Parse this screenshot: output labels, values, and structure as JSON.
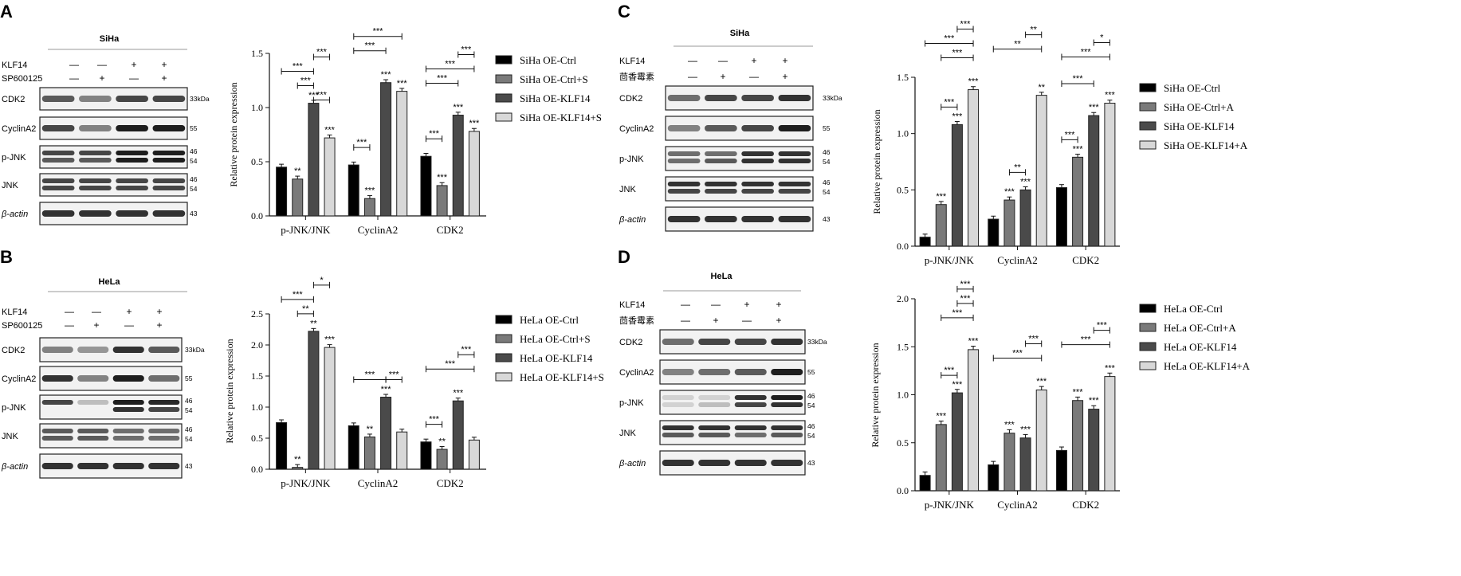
{
  "panels": [
    {
      "letter": "A",
      "cell": "SiHa",
      "treat_label": "SP600125",
      "rows": [
        "CDK2",
        "CyclinA2",
        "p-JNK",
        "JNK",
        "β-actin"
      ],
      "kda": [
        "33kDa",
        "55",
        "46\n54",
        "46\n54",
        "43"
      ],
      "klf": [
        "—",
        "—",
        "+",
        "+"
      ],
      "treat": [
        "—",
        "+",
        "—",
        "+"
      ]
    },
    {
      "letter": "B",
      "cell": "HeLa",
      "treat_label": "SP600125",
      "rows": [
        "CDK2",
        "CyclinA2",
        "p-JNK",
        "JNK",
        "β-actin"
      ],
      "kda": [
        "33kDa",
        "55",
        "46\n54",
        "46\n54",
        "43"
      ],
      "klf": [
        "—",
        "—",
        "+",
        "+"
      ],
      "treat": [
        "—",
        "+",
        "—",
        "+"
      ]
    },
    {
      "letter": "C",
      "cell": "SiHa",
      "treat_label": "茴香霉素",
      "rows": [
        "CDK2",
        "CyclinA2",
        "p-JNK",
        "JNK",
        "β-actin"
      ],
      "kda": [
        "33kDa",
        "55",
        "46\n54",
        "46\n54",
        "43"
      ],
      "klf": [
        "—",
        "—",
        "+",
        "+"
      ],
      "treat": [
        "—",
        "+",
        "—",
        "+"
      ]
    },
    {
      "letter": "D",
      "cell": "HeLa",
      "treat_label": "茴香霉素",
      "rows": [
        "CDK2",
        "CyclinA2",
        "p-JNK",
        "JNK",
        "β-actin"
      ],
      "kda": [
        "33kDa",
        "55",
        "46\n54",
        "46\n54",
        "43"
      ],
      "klf": [
        "—",
        "—",
        "+",
        "+"
      ],
      "treat": [
        "—",
        "+",
        "—",
        "+"
      ]
    }
  ],
  "klf_label": "KLF14",
  "colors": {
    "s1": "#000000",
    "s2": "#7a7a7a",
    "s3": "#4a4a4a",
    "s4": "#d8d8d8",
    "edge": "#222222"
  },
  "chart_data": [
    {
      "type": "bar",
      "panel": "A",
      "categories": [
        "p-JNK/JNK",
        "CyclinA2",
        "CDK2"
      ],
      "ylabel": "Relative protein expression",
      "ylim": [
        0,
        1.5
      ],
      "yticks": [
        0.0,
        0.5,
        1.0,
        1.5
      ],
      "series": [
        {
          "name": "SiHa OE-Ctrl",
          "values": [
            0.45,
            0.47,
            0.55
          ]
        },
        {
          "name": "SiHa OE-Ctrl+S",
          "values": [
            0.34,
            0.16,
            0.28
          ]
        },
        {
          "name": "SiHa OE-KLF14",
          "values": [
            1.04,
            1.23,
            0.93
          ]
        },
        {
          "name": "SiHa OE-KLF14+S",
          "values": [
            0.72,
            1.15,
            0.78
          ]
        }
      ],
      "bar_stars": [
        [
          "",
          "**",
          "***",
          "***"
        ],
        [
          "",
          "***",
          "***",
          "***"
        ],
        [
          "",
          "***",
          "***",
          "***"
        ]
      ],
      "brackets": [
        {
          "cat": 0,
          "from": 2,
          "to": 3,
          "level": 0,
          "label": "***"
        },
        {
          "cat": 0,
          "from": 1,
          "to": 2,
          "level": 1,
          "label": "***"
        },
        {
          "cat": 0,
          "from": 0,
          "to": 2,
          "level": 2,
          "label": "***"
        },
        {
          "cat": 0,
          "from": 2,
          "to": 3,
          "level": 3,
          "label": "***"
        },
        {
          "cat": 1,
          "from": 0,
          "to": 1,
          "level": 1,
          "label": "***"
        },
        {
          "cat": 1,
          "from": 0,
          "to": 2,
          "level": 2,
          "label": "***"
        },
        {
          "cat": 1,
          "from": 0,
          "to": 3,
          "level": 3,
          "label": "***"
        },
        {
          "cat": 2,
          "from": 0,
          "to": 1,
          "level": 1,
          "label": "***"
        },
        {
          "cat": 2,
          "from": 0,
          "to": 2,
          "level": 2,
          "label": "***"
        },
        {
          "cat": 2,
          "from": 0,
          "to": 3,
          "level": 3,
          "label": "***"
        },
        {
          "cat": 2,
          "from": 2,
          "to": 3,
          "level": 4,
          "label": "***"
        }
      ]
    },
    {
      "type": "bar",
      "panel": "B",
      "categories": [
        "p-JNK/JNK",
        "CyclinA2",
        "CDK2"
      ],
      "ylabel": "Relative protein expression",
      "ylim": [
        0,
        2.5
      ],
      "yticks": [
        0.0,
        0.5,
        1.0,
        1.5,
        2.0,
        2.5
      ],
      "series": [
        {
          "name": "HeLa OE-Ctrl",
          "values": [
            0.75,
            0.7,
            0.44
          ]
        },
        {
          "name": "HeLa OE-Ctrl+S",
          "values": [
            0.03,
            0.52,
            0.32
          ]
        },
        {
          "name": "HeLa OE-KLF14",
          "values": [
            2.22,
            1.16,
            1.1
          ]
        },
        {
          "name": "HeLa OE-KLF14+S",
          "values": [
            1.96,
            0.6,
            0.47
          ]
        }
      ],
      "bar_stars": [
        [
          "",
          "**",
          "**",
          "***"
        ],
        [
          "",
          "**",
          "***",
          ""
        ],
        [
          "",
          "**",
          "***",
          ""
        ]
      ],
      "brackets": [
        {
          "cat": 0,
          "from": 1,
          "to": 2,
          "level": 1,
          "label": "**"
        },
        {
          "cat": 0,
          "from": 0,
          "to": 2,
          "level": 2,
          "label": "***"
        },
        {
          "cat": 0,
          "from": 2,
          "to": 3,
          "level": 3,
          "label": "*"
        },
        {
          "cat": 1,
          "from": 0,
          "to": 2,
          "level": 1,
          "label": "***"
        },
        {
          "cat": 1,
          "from": 2,
          "to": 3,
          "level": 1,
          "label": "***"
        },
        {
          "cat": 2,
          "from": 0,
          "to": 1,
          "level": 1,
          "label": "***"
        },
        {
          "cat": 2,
          "from": 0,
          "to": 3,
          "level": 2,
          "label": "***"
        },
        {
          "cat": 2,
          "from": 2,
          "to": 3,
          "level": 3,
          "label": "***"
        }
      ]
    },
    {
      "type": "bar",
      "panel": "C",
      "categories": [
        "p-JNK/JNK",
        "CyclinA2",
        "CDK2"
      ],
      "ylabel": "Relative protein expression",
      "ylim": [
        0,
        1.5
      ],
      "yticks": [
        0.0,
        0.5,
        1.0,
        1.5
      ],
      "series": [
        {
          "name": "SiHa OE-Ctrl",
          "values": [
            0.08,
            0.24,
            0.52
          ]
        },
        {
          "name": "SiHa OE-Ctrl+A",
          "values": [
            0.37,
            0.41,
            0.79
          ]
        },
        {
          "name": "SiHa OE-KLF14",
          "values": [
            1.08,
            0.5,
            1.16
          ]
        },
        {
          "name": "SiHa OE-KLF14+A",
          "values": [
            1.39,
            1.34,
            1.27
          ]
        }
      ],
      "bar_stars": [
        [
          "",
          "***",
          "***",
          "***"
        ],
        [
          "",
          "***",
          "***",
          "**"
        ],
        [
          "",
          "***",
          "***",
          "***"
        ]
      ],
      "brackets": [
        {
          "cat": 0,
          "from": 1,
          "to": 2,
          "level": 1,
          "label": "***"
        },
        {
          "cat": 0,
          "from": 1,
          "to": 3,
          "level": 2,
          "label": "***"
        },
        {
          "cat": 0,
          "from": 0,
          "to": 3,
          "level": 3,
          "label": "***"
        },
        {
          "cat": 0,
          "from": 2,
          "to": 3,
          "level": 4,
          "label": "***"
        },
        {
          "cat": 1,
          "from": 1,
          "to": 2,
          "level": 1,
          "label": "**"
        },
        {
          "cat": 1,
          "from": 0,
          "to": 3,
          "level": 3,
          "label": "**"
        },
        {
          "cat": 1,
          "from": 2,
          "to": 3,
          "level": 4,
          "label": "**"
        },
        {
          "cat": 2,
          "from": 0,
          "to": 1,
          "level": 1,
          "label": "***"
        },
        {
          "cat": 2,
          "from": 0,
          "to": 2,
          "level": 2,
          "label": "***"
        },
        {
          "cat": 2,
          "from": 0,
          "to": 3,
          "level": 3,
          "label": "***"
        },
        {
          "cat": 2,
          "from": 2,
          "to": 3,
          "level": 4,
          "label": "*"
        }
      ]
    },
    {
      "type": "bar",
      "panel": "D",
      "categories": [
        "p-JNK/JNK",
        "CyclinA2",
        "CDK2"
      ],
      "ylabel": "Relative protein expression",
      "ylim": [
        0,
        2.0
      ],
      "yticks": [
        0.0,
        0.5,
        1.0,
        1.5,
        2.0
      ],
      "series": [
        {
          "name": "HeLa OE-Ctrl",
          "values": [
            0.16,
            0.27,
            0.42
          ]
        },
        {
          "name": "HeLa OE-Ctrl+A",
          "values": [
            0.69,
            0.6,
            0.94
          ]
        },
        {
          "name": "HeLa OE-KLF14",
          "values": [
            1.02,
            0.55,
            0.85
          ]
        },
        {
          "name": "HeLa OE-KLF14+A",
          "values": [
            1.47,
            1.05,
            1.19
          ]
        }
      ],
      "bar_stars": [
        [
          "",
          "***",
          "***",
          "***"
        ],
        [
          "",
          "***",
          "***",
          "***"
        ],
        [
          "",
          "***",
          "***",
          "***"
        ]
      ],
      "brackets": [
        {
          "cat": 0,
          "from": 1,
          "to": 2,
          "level": 1,
          "label": "***"
        },
        {
          "cat": 0,
          "from": 1,
          "to": 3,
          "level": 2,
          "label": "***"
        },
        {
          "cat": 0,
          "from": 2,
          "to": 3,
          "level": 3,
          "label": "***"
        },
        {
          "cat": 0,
          "from": 2,
          "to": 3,
          "level": 4,
          "label": "***"
        },
        {
          "cat": 1,
          "from": 0,
          "to": 3,
          "level": 2,
          "label": "***"
        },
        {
          "cat": 1,
          "from": 2,
          "to": 3,
          "level": 3,
          "label": "***"
        },
        {
          "cat": 2,
          "from": 0,
          "to": 3,
          "level": 2,
          "label": "***"
        },
        {
          "cat": 2,
          "from": 2,
          "to": 3,
          "level": 3,
          "label": "***"
        }
      ]
    }
  ]
}
